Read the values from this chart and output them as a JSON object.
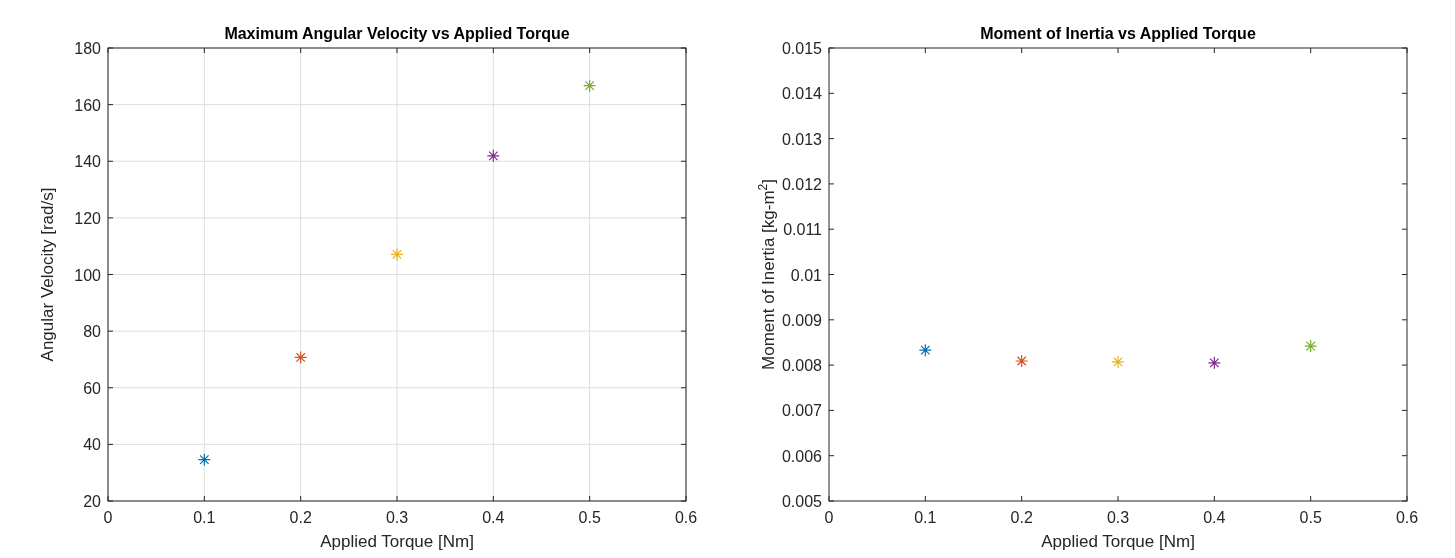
{
  "chart_data": [
    {
      "type": "scatter",
      "title": "Maximum Angular Velocity vs Applied Torque",
      "xlabel": "Applied Torque [Nm]",
      "ylabel": "Angular Velocity [rad/s]",
      "xlim": [
        0,
        0.6
      ],
      "xticks": [
        0,
        0.1,
        0.2,
        0.3,
        0.4,
        0.5,
        0.6
      ],
      "ylim": [
        20,
        180
      ],
      "yticks": [
        20,
        40,
        60,
        80,
        100,
        120,
        140,
        160,
        180
      ],
      "grid": true,
      "marker": "cross",
      "series": [
        {
          "color": "#0072bd",
          "x": [
            0.1
          ],
          "values": [
            34.6
          ]
        },
        {
          "color": "#d95319",
          "x": [
            0.2
          ],
          "values": [
            70.7
          ]
        },
        {
          "color": "#edb120",
          "x": [
            0.3
          ],
          "values": [
            107.1
          ]
        },
        {
          "color": "#7e2f8e",
          "x": [
            0.4
          ],
          "values": [
            141.9
          ]
        },
        {
          "color": "#77ac30",
          "x": [
            0.5
          ],
          "values": [
            166.7
          ]
        }
      ]
    },
    {
      "type": "scatter",
      "title": "Moment of Inertia vs Applied Torque",
      "xlabel": "Applied Torque [Nm]",
      "ylabel": "Moment of Inertia [kg-m$^{2}$]",
      "xlim": [
        0,
        0.6
      ],
      "xticks": [
        0,
        0.1,
        0.2,
        0.3,
        0.4,
        0.5,
        0.6
      ],
      "ylim": [
        0.005,
        0.015
      ],
      "yticks": [
        0.005,
        0.006,
        0.007,
        0.008,
        0.009,
        0.01,
        0.011,
        0.012,
        0.013,
        0.014,
        0.015
      ],
      "grid": false,
      "marker": "cross",
      "series": [
        {
          "color": "#0072bd",
          "x": [
            0.1
          ],
          "values": [
            0.00833
          ]
        },
        {
          "color": "#d95319",
          "x": [
            0.2
          ],
          "values": [
            0.00809
          ]
        },
        {
          "color": "#edb120",
          "x": [
            0.3
          ],
          "values": [
            0.00807
          ]
        },
        {
          "color": "#7e2f8e",
          "x": [
            0.4
          ],
          "values": [
            0.00805
          ]
        },
        {
          "color": "#77ac30",
          "x": [
            0.5
          ],
          "values": [
            0.00842
          ]
        }
      ]
    }
  ]
}
